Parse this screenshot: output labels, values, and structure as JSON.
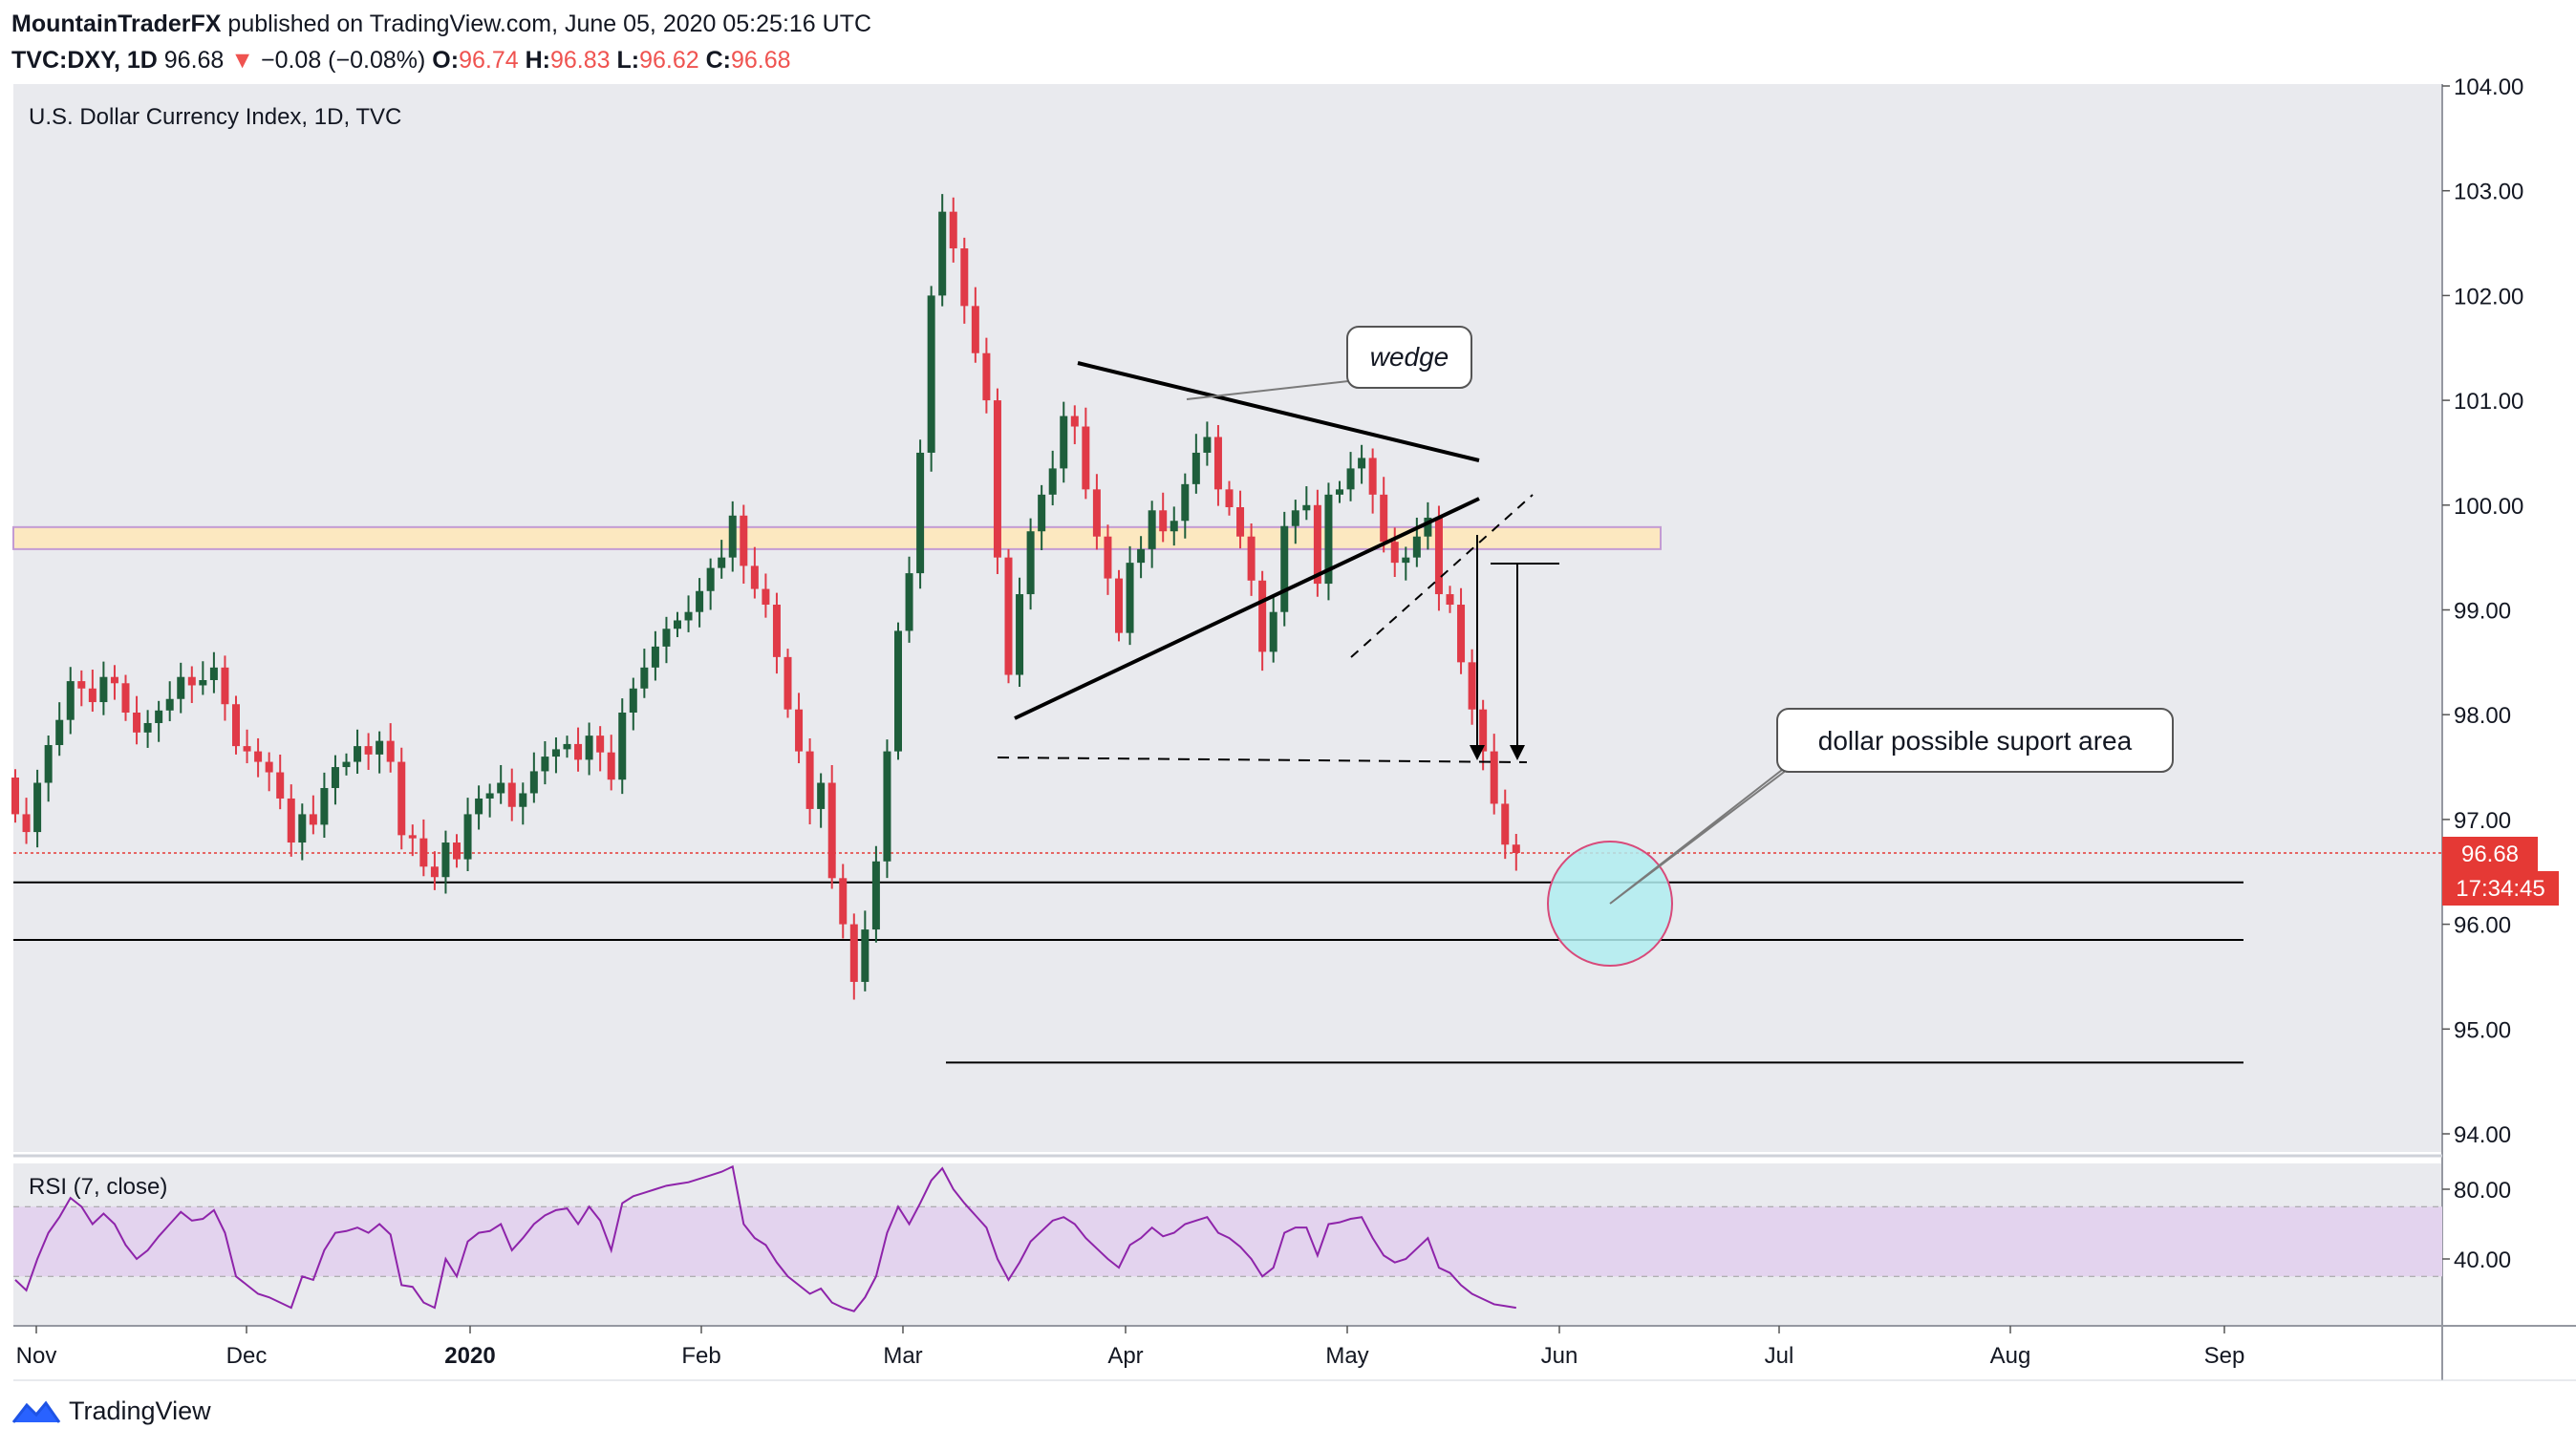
{
  "header": {
    "author": "MountainTraderFX",
    "published": "published on TradingView.com, June 05, 2020 05:25:16 UTC",
    "symbol": "TVC:DXY, 1D",
    "last": "96.68",
    "arrow": "▼",
    "change": "−0.08 (−0.08%)",
    "o_label": "O:",
    "o": "96.74",
    "h_label": "H:",
    "h": "96.83",
    "l_label": "L:",
    "l": "96.62",
    "c_label": "C:",
    "c": "96.68"
  },
  "footer": {
    "brand": "TradingView",
    "icon": "tradingview-logo-icon"
  },
  "colors": {
    "up": "#1e5e3b",
    "down": "#e03a47",
    "zone": "#fce8c0",
    "rsi_line": "#8e24aa",
    "rsi_band": "#e3d3ee",
    "circle": "#b0edf0",
    "circle_stroke": "#d84a7a",
    "price_tag": "#e53935"
  },
  "chart_data": [
    {
      "type": "candlestick",
      "title": "U.S. Dollar Currency Index, 1D, TVC",
      "x_ticks": [
        "Nov",
        "Dec",
        "2020",
        "Feb",
        "Mar",
        "Apr",
        "May",
        "Jun",
        "Jul",
        "Aug",
        "Sep"
      ],
      "y_ticks": [
        "104.00",
        "103.00",
        "102.00",
        "101.00",
        "100.00",
        "99.00",
        "98.00",
        "97.00",
        "96.00",
        "95.00",
        "94.00"
      ],
      "ylim": [
        93.8,
        104.1
      ],
      "last_price": "96.68",
      "countdown": "17:34:45",
      "resistance_zone": [
        99.58,
        99.79
      ],
      "horizontal_levels": [
        96.4,
        95.85,
        94.68
      ],
      "wedge_label": "wedge",
      "support_label": "dollar possible suport area",
      "closes": [
        97.05,
        96.88,
        97.35,
        97.71,
        97.95,
        98.32,
        98.25,
        98.12,
        98.36,
        98.3,
        98.02,
        97.83,
        97.92,
        98.04,
        98.15,
        98.36,
        98.28,
        98.33,
        98.45,
        98.1,
        97.7,
        97.65,
        97.55,
        97.45,
        97.2,
        96.78,
        97.05,
        96.95,
        97.3,
        97.5,
        97.55,
        97.7,
        97.62,
        97.75,
        97.55,
        96.85,
        96.82,
        96.55,
        96.45,
        96.78,
        96.62,
        97.05,
        97.2,
        97.25,
        97.35,
        97.12,
        97.25,
        97.46,
        97.6,
        97.67,
        97.72,
        97.57,
        97.8,
        97.64,
        97.38,
        98.02,
        98.25,
        98.45,
        98.65,
        98.82,
        98.9,
        98.98,
        99.18,
        99.4,
        99.5,
        99.9,
        99.42,
        99.2,
        99.05,
        98.55,
        98.05,
        97.65,
        97.1,
        97.35,
        96.44,
        96.0,
        95.45,
        95.95,
        96.6,
        97.65,
        98.8,
        99.35,
        100.5,
        102.0,
        102.8,
        102.45,
        101.9,
        101.45,
        101.0,
        99.5,
        98.38,
        99.15,
        99.75,
        100.1,
        100.35,
        100.85,
        100.75,
        100.15,
        99.7,
        99.3,
        98.78,
        99.45,
        99.58,
        99.95,
        99.75,
        99.85,
        100.2,
        100.5,
        100.65,
        100.15,
        99.98,
        99.7,
        99.28,
        98.6,
        98.98,
        99.8,
        99.95,
        100.0,
        99.25,
        100.1,
        100.15,
        100.35,
        100.45,
        100.1,
        99.65,
        99.45,
        99.5,
        99.7,
        99.88,
        99.15,
        99.05,
        98.5,
        98.05,
        97.65,
        97.15,
        96.76,
        96.68
      ],
      "rsi": {
        "label": "RSI (7, close)",
        "y_ticks": [
          "80.00",
          "40.00"
        ],
        "upper": 70,
        "lower": 30,
        "values": [
          28,
          22,
          40,
          55,
          64,
          75,
          70,
          60,
          66,
          60,
          48,
          40,
          45,
          53,
          60,
          67,
          62,
          63,
          68,
          55,
          30,
          25,
          20,
          18,
          15,
          12,
          30,
          28,
          45,
          55,
          56,
          58,
          55,
          60,
          54,
          25,
          24,
          15,
          12,
          40,
          30,
          50,
          55,
          56,
          60,
          45,
          52,
          60,
          65,
          68,
          69,
          60,
          70,
          62,
          45,
          72,
          76,
          78,
          80,
          82,
          83,
          84,
          86,
          88,
          90,
          93,
          60,
          52,
          48,
          38,
          30,
          25,
          20,
          23,
          15,
          12,
          10,
          18,
          30,
          55,
          70,
          60,
          72,
          85,
          92,
          80,
          72,
          65,
          58,
          40,
          28,
          38,
          50,
          56,
          62,
          64,
          60,
          52,
          46,
          40,
          35,
          48,
          52,
          58,
          53,
          55,
          60,
          62,
          64,
          55,
          52,
          47,
          40,
          30,
          35,
          55,
          58,
          58,
          42,
          60,
          61,
          63,
          64,
          52,
          42,
          38,
          40,
          46,
          52,
          35,
          32,
          25,
          20,
          17,
          14,
          13,
          12
        ]
      }
    }
  ]
}
